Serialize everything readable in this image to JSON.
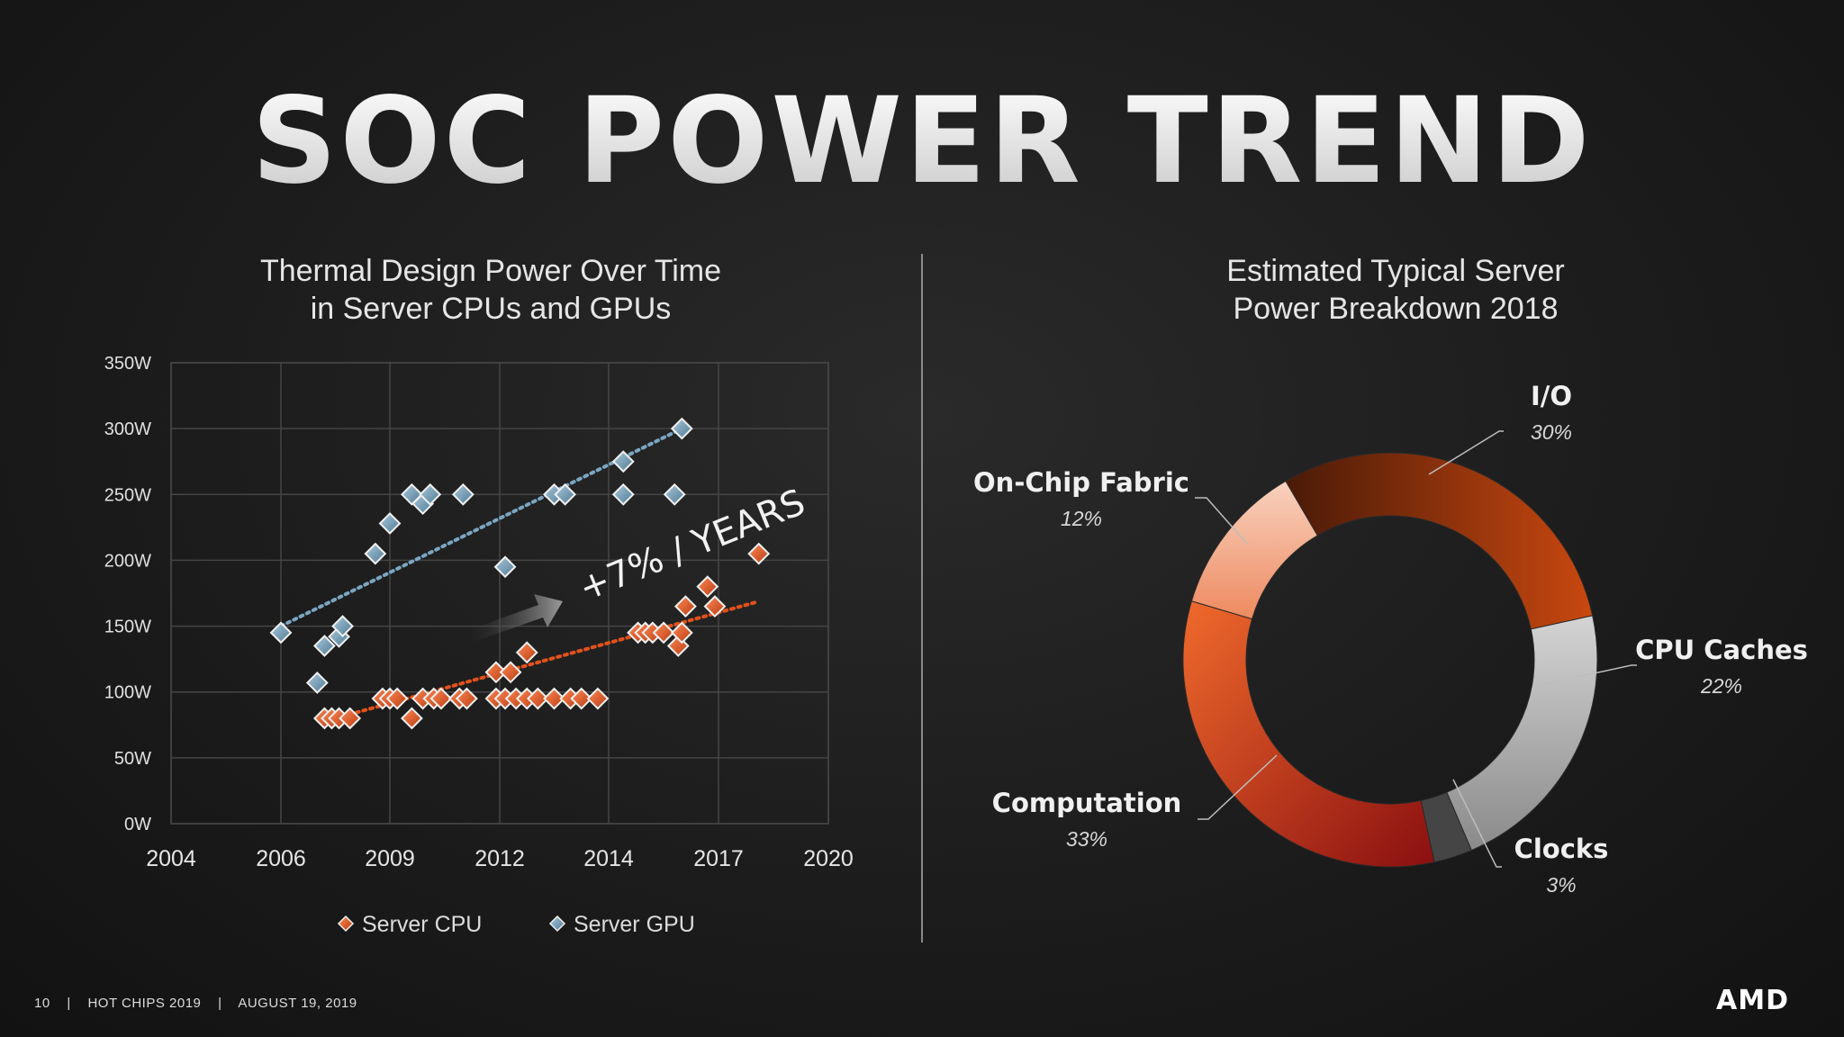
{
  "slide": {
    "title": "SOC POWER TREND",
    "footer": {
      "page": "10",
      "event": "HOT CHIPS 2019",
      "date": "AUGUST 19, 2019",
      "sep": "|"
    },
    "logo": "AMD"
  },
  "chart_data": [
    {
      "type": "scatter",
      "title_line1": "Thermal Design Power Over Time",
      "title_line2": "in Server CPUs and GPUs",
      "xlim": [
        2004,
        2020
      ],
      "ylim": [
        0,
        350
      ],
      "x_ticks": [
        "2004",
        "2006",
        "2009",
        "2012",
        "2014",
        "2017",
        "2020"
      ],
      "y_ticks": [
        "0W",
        "50W",
        "100W",
        "150W",
        "200W",
        "250W",
        "300W",
        "350W"
      ],
      "grid": true,
      "annotation": "+7% / YEARS",
      "legend_position": "bottom",
      "colors": {
        "cpu": "#e0561f",
        "gpu": "#6f9ab5",
        "cpu_trend": "#e2511c",
        "gpu_trend": "#7aa6c2"
      },
      "series": [
        {
          "name": "Server CPU",
          "points": [
            [
              2007.2,
              80
            ],
            [
              2007.4,
              80
            ],
            [
              2007.6,
              80
            ],
            [
              2007.9,
              80
            ],
            [
              2008.8,
              95
            ],
            [
              2009.0,
              95
            ],
            [
              2009.2,
              95
            ],
            [
              2009.6,
              80
            ],
            [
              2009.9,
              95
            ],
            [
              2010.2,
              95
            ],
            [
              2010.4,
              95
            ],
            [
              2010.9,
              95
            ],
            [
              2011.1,
              95
            ],
            [
              2011.9,
              115
            ],
            [
              2012.2,
              115
            ],
            [
              2011.9,
              95
            ],
            [
              2012.1,
              95
            ],
            [
              2012.3,
              95
            ],
            [
              2012.5,
              130
            ],
            [
              2012.5,
              95
            ],
            [
              2012.7,
              95
            ],
            [
              2013.0,
              95
            ],
            [
              2013.3,
              95
            ],
            [
              2013.5,
              95
            ],
            [
              2013.8,
              95
            ],
            [
              2014.8,
              145
            ],
            [
              2015.0,
              145
            ],
            [
              2015.2,
              145
            ],
            [
              2015.5,
              145
            ],
            [
              2015.9,
              135
            ],
            [
              2016.0,
              145
            ],
            [
              2016.1,
              165
            ],
            [
              2016.7,
              180
            ],
            [
              2016.9,
              165
            ],
            [
              2018.1,
              205
            ]
          ]
        },
        {
          "name": "Server GPU",
          "points": [
            [
              2006.0,
              145
            ],
            [
              2007.0,
              107
            ],
            [
              2007.2,
              135
            ],
            [
              2007.6,
              142
            ],
            [
              2007.7,
              150
            ],
            [
              2008.6,
              205
            ],
            [
              2009.0,
              228
            ],
            [
              2009.6,
              250
            ],
            [
              2009.9,
              243
            ],
            [
              2010.1,
              250
            ],
            [
              2011.0,
              250
            ],
            [
              2012.1,
              195
            ],
            [
              2013.0,
              250
            ],
            [
              2013.2,
              250
            ],
            [
              2014.4,
              275
            ],
            [
              2014.4,
              250
            ],
            [
              2015.8,
              250
            ],
            [
              2016.0,
              300
            ]
          ]
        }
      ],
      "trendlines": [
        {
          "name": "Server CPU trend",
          "x": [
            2007.5,
            2018.0
          ],
          "y": [
            80,
            168
          ]
        },
        {
          "name": "Server GPU trend",
          "x": [
            2006.0,
            2016.0
          ],
          "y": [
            150,
            300
          ]
        }
      ]
    },
    {
      "type": "pie",
      "variant": "donut",
      "title_line1": "Estimated Typical Server",
      "title_line2": "Power Breakdown 2018",
      "slices": [
        {
          "label": "I/O",
          "value": 30,
          "pct_label": "30%",
          "color": "#b8400f"
        },
        {
          "label": "CPU Caches",
          "value": 22,
          "pct_label": "22%",
          "color": "#b5b5b5"
        },
        {
          "label": "Clocks",
          "value": 3,
          "pct_label": "3%",
          "color": "#4b4b4b"
        },
        {
          "label": "Computation",
          "value": 33,
          "pct_label": "33%",
          "color": "#d8461c"
        },
        {
          "label": "On-Chip Fabric",
          "value": 12,
          "pct_label": "12%",
          "color": "#f2a07c"
        }
      ]
    }
  ]
}
